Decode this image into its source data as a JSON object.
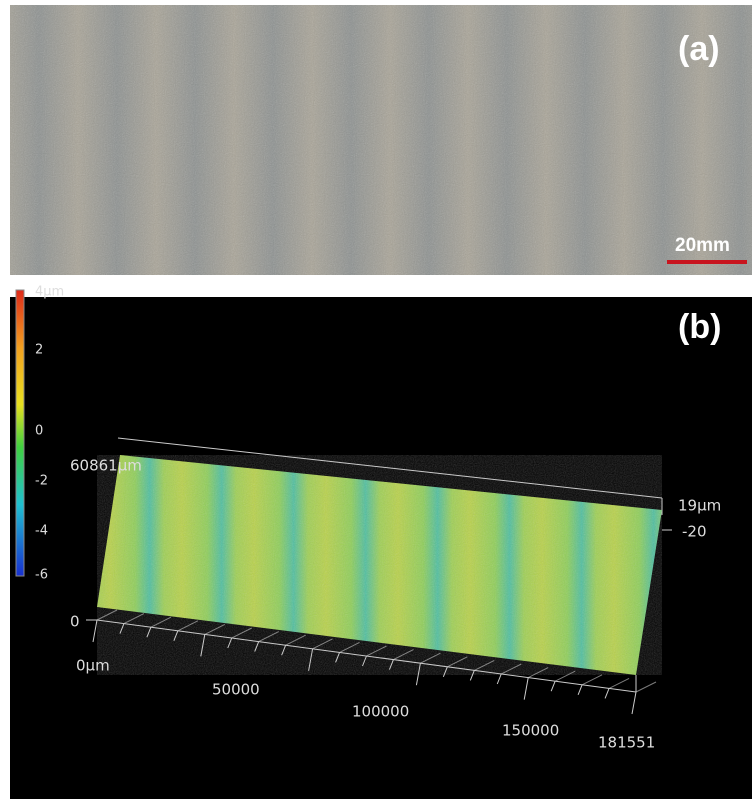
{
  "panel_a": {
    "label": "(a)",
    "scale_bar": "20mm"
  },
  "panel_b": {
    "label": "(b)",
    "colorbar": [
      "4µm",
      "2",
      "0",
      "-2",
      "-4",
      "-6"
    ],
    "y_axis": {
      "max": "60861µm",
      "min": "0"
    },
    "x_axis": {
      "ticks": [
        "0µm",
        "50000",
        "100000",
        "150000",
        "181551"
      ]
    },
    "z_axis": {
      "ticks": [
        "19µm",
        "-20"
      ]
    }
  }
}
